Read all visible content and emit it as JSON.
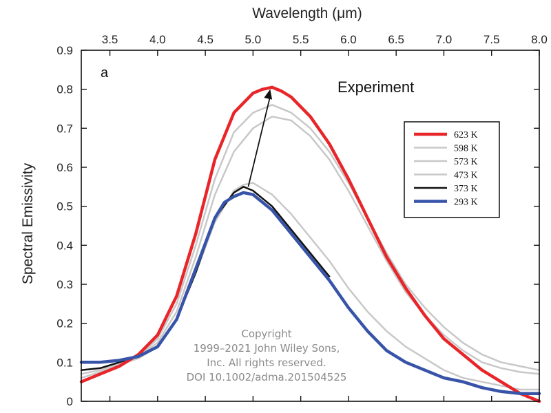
{
  "chart_data": {
    "type": "line",
    "xlabel": "Wavelength (μm)",
    "ylabel": "Spectral Emissivity",
    "xlim": [
      3.2,
      8.0
    ],
    "ylim": [
      0,
      0.9
    ],
    "x_ticks": [
      "3.5",
      "4.0",
      "4.5",
      "5.0",
      "5.5",
      "6.0",
      "6.5",
      "7.0",
      "7.5",
      "8.0"
    ],
    "y_ticks": [
      "0",
      "0.1",
      "0.2",
      "0.3",
      "0.4",
      "0.5",
      "0.6",
      "0.7",
      "0.8",
      "0.9"
    ],
    "x_axis_position": "top",
    "grid": false,
    "legend_position": "right",
    "panel_label": "a",
    "annotation": "Experiment",
    "arrow": {
      "from": [
        4.95,
        0.55
      ],
      "to": [
        5.18,
        0.8
      ]
    },
    "series": [
      {
        "name": "623 K",
        "color": "#e8262a",
        "width": 4.5,
        "x": [
          3.2,
          3.4,
          3.6,
          3.8,
          4.0,
          4.2,
          4.4,
          4.6,
          4.8,
          5.0,
          5.1,
          5.2,
          5.3,
          5.4,
          5.6,
          5.8,
          6.0,
          6.2,
          6.4,
          6.6,
          6.8,
          7.0,
          7.2,
          7.4,
          7.6,
          7.8,
          8.0
        ],
        "y": [
          0.05,
          0.07,
          0.09,
          0.12,
          0.17,
          0.27,
          0.43,
          0.62,
          0.74,
          0.79,
          0.8,
          0.805,
          0.795,
          0.78,
          0.73,
          0.66,
          0.57,
          0.47,
          0.37,
          0.29,
          0.22,
          0.16,
          0.12,
          0.08,
          0.05,
          0.02,
          0.0
        ]
      },
      {
        "name": "598 K",
        "color": "#c8c8c8",
        "width": 2.5,
        "x": [
          3.2,
          3.4,
          3.6,
          3.8,
          4.0,
          4.2,
          4.4,
          4.6,
          4.8,
          5.0,
          5.2,
          5.4,
          5.6,
          5.8,
          6.0,
          6.2,
          6.4,
          6.6,
          6.8,
          7.0,
          7.2,
          7.4,
          7.6,
          7.8,
          8.0
        ],
        "y": [
          0.06,
          0.075,
          0.09,
          0.115,
          0.16,
          0.25,
          0.4,
          0.57,
          0.69,
          0.74,
          0.76,
          0.74,
          0.7,
          0.64,
          0.56,
          0.47,
          0.38,
          0.3,
          0.24,
          0.19,
          0.15,
          0.12,
          0.1,
          0.09,
          0.08
        ]
      },
      {
        "name": "573 K",
        "color": "#c8c8c8",
        "width": 2.5,
        "x": [
          3.2,
          3.4,
          3.6,
          3.8,
          4.0,
          4.2,
          4.4,
          4.6,
          4.8,
          5.0,
          5.2,
          5.4,
          5.6,
          5.8,
          6.0,
          6.2,
          6.4,
          6.6,
          6.8,
          7.0,
          7.2,
          7.4,
          7.6,
          7.8,
          8.0
        ],
        "y": [
          0.07,
          0.08,
          0.095,
          0.115,
          0.15,
          0.23,
          0.37,
          0.53,
          0.64,
          0.7,
          0.73,
          0.72,
          0.68,
          0.62,
          0.54,
          0.45,
          0.36,
          0.28,
          0.22,
          0.17,
          0.13,
          0.1,
          0.085,
          0.075,
          0.07
        ]
      },
      {
        "name": "473 K",
        "color": "#c8c8c8",
        "width": 2.5,
        "x": [
          3.2,
          3.4,
          3.6,
          3.8,
          4.0,
          4.2,
          4.4,
          4.6,
          4.8,
          4.9,
          5.0,
          5.2,
          5.4,
          5.6,
          5.8,
          6.0,
          6.2,
          6.4,
          6.6,
          6.8,
          7.0,
          7.2,
          7.4,
          7.6,
          7.8,
          8.0
        ],
        "y": [
          0.08,
          0.085,
          0.095,
          0.11,
          0.14,
          0.21,
          0.33,
          0.46,
          0.54,
          0.555,
          0.56,
          0.53,
          0.48,
          0.42,
          0.36,
          0.29,
          0.23,
          0.18,
          0.14,
          0.11,
          0.08,
          0.06,
          0.05,
          0.04,
          0.03,
          0.03
        ]
      },
      {
        "name": "373 K",
        "color": "#111111",
        "width": 2.5,
        "x": [
          3.2,
          3.4,
          3.6,
          3.8,
          4.0,
          4.2,
          4.4,
          4.6,
          4.8,
          4.9,
          5.0,
          5.2,
          5.4,
          5.6,
          5.8
        ],
        "y": [
          0.08,
          0.085,
          0.1,
          0.115,
          0.14,
          0.21,
          0.33,
          0.47,
          0.535,
          0.55,
          0.54,
          0.5,
          0.44,
          0.38,
          0.32
        ]
      },
      {
        "name": "293 K",
        "color": "#3754a8",
        "width": 4.5,
        "x": [
          3.2,
          3.4,
          3.6,
          3.8,
          4.0,
          4.2,
          4.4,
          4.6,
          4.7,
          4.8,
          4.9,
          5.0,
          5.2,
          5.4,
          5.6,
          5.8,
          6.0,
          6.2,
          6.4,
          6.6,
          6.8,
          7.0,
          7.2,
          7.4,
          7.6,
          7.8,
          8.0
        ],
        "y": [
          0.1,
          0.1,
          0.105,
          0.115,
          0.14,
          0.21,
          0.34,
          0.47,
          0.51,
          0.525,
          0.535,
          0.53,
          0.49,
          0.43,
          0.37,
          0.31,
          0.24,
          0.18,
          0.13,
          0.1,
          0.08,
          0.06,
          0.05,
          0.035,
          0.025,
          0.02,
          0.02
        ]
      }
    ]
  },
  "watermark": {
    "lines": [
      "Copyright",
      "1999–2021 John Wiley Sons,",
      "Inc. All rights reserved.",
      "DOI 10.1002/adma.201504525"
    ]
  }
}
